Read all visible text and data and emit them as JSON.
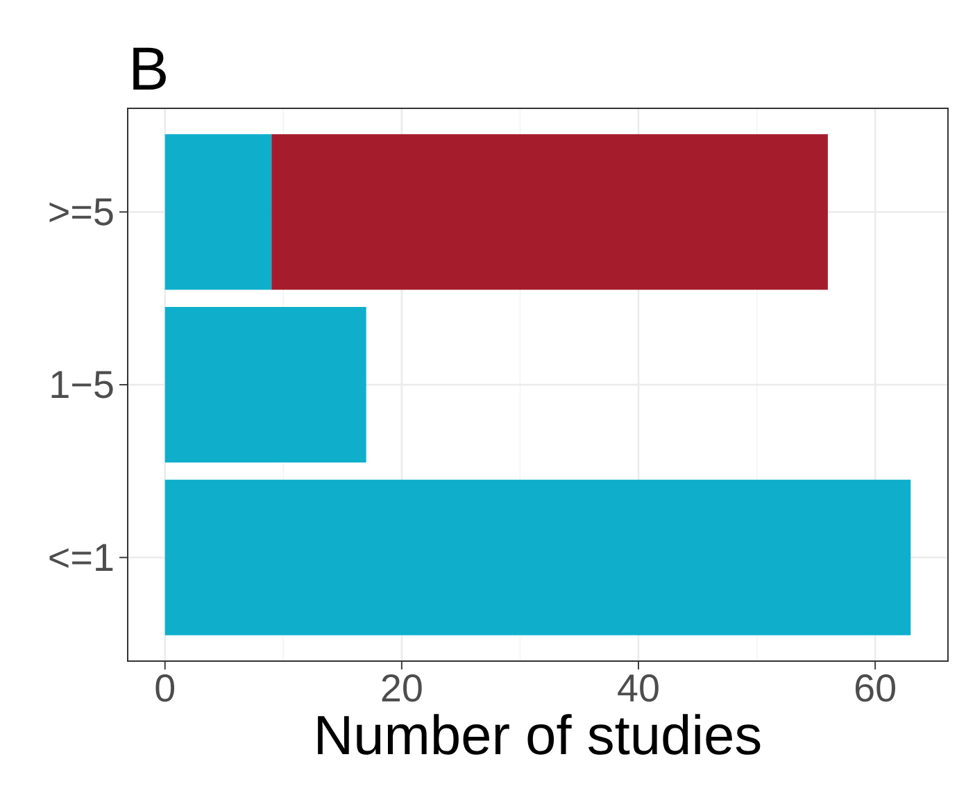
{
  "chart_data": {
    "type": "bar",
    "title": "B",
    "xlabel": "Number of studies",
    "orientation": "horizontal",
    "stacked": true,
    "categories": [
      ">=5",
      "1−5",
      "<=1"
    ],
    "series": [
      {
        "color": "#0fafcb",
        "values": [
          9,
          17,
          63
        ]
      },
      {
        "color": "#a51d2d",
        "values": [
          47,
          null,
          null
        ]
      }
    ],
    "xlim": [
      -3.15,
      66.15
    ],
    "xticks": [
      0,
      20,
      40,
      60
    ],
    "grid": true
  }
}
